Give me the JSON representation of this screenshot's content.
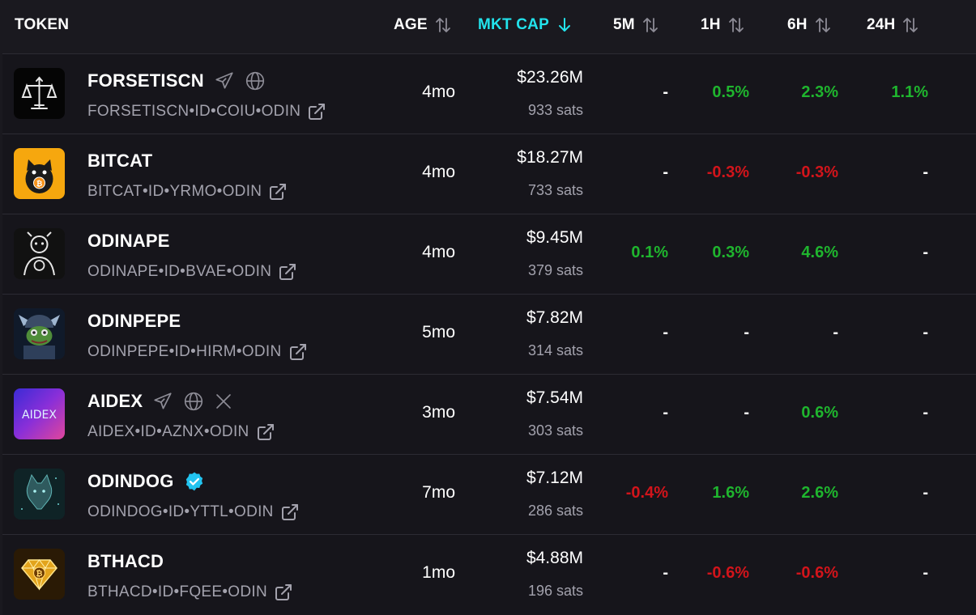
{
  "columns": {
    "token": "TOKEN",
    "age": "AGE",
    "mkt_cap": "MKT CAP",
    "m5": "5M",
    "h1": "1H",
    "h6": "6H",
    "h24": "24H"
  },
  "colors": {
    "active_header": "#22e3ec",
    "positive": "#1fb52e",
    "negative": "#d2141b",
    "muted_text": "#a3a2ad",
    "verified_badge": "#22c4f0"
  },
  "rows": [
    {
      "name": "FORSETISCN",
      "ticker": "FORSETISCN•ID•COIU•ODIN",
      "age": "4mo",
      "mcap": "$23.26M",
      "sats": "933 sats",
      "m5": "-",
      "h1": "0.5%",
      "h6": "2.3%",
      "h24": "1.1%",
      "icons": [
        "telegram-icon",
        "globe-icon"
      ]
    },
    {
      "name": "BITCAT",
      "ticker": "BITCAT•ID•YRMO•ODIN",
      "age": "4mo",
      "mcap": "$18.27M",
      "sats": "733 sats",
      "m5": "-",
      "h1": "-0.3%",
      "h6": "-0.3%",
      "h24": "-",
      "icons": []
    },
    {
      "name": "ODINAPE",
      "ticker": "ODINAPE•ID•BVAE•ODIN",
      "age": "4mo",
      "mcap": "$9.45M",
      "sats": "379 sats",
      "m5": "0.1%",
      "h1": "0.3%",
      "h6": "4.6%",
      "h24": "-",
      "icons": []
    },
    {
      "name": "ODINPEPE",
      "ticker": "ODINPEPE•ID•HIRM•ODIN",
      "age": "5mo",
      "mcap": "$7.82M",
      "sats": "314 sats",
      "m5": "-",
      "h1": "-",
      "h6": "-",
      "h24": "-",
      "icons": []
    },
    {
      "name": "AIDEX",
      "ticker": "AIDEX•ID•AZNX•ODIN",
      "age": "3mo",
      "mcap": "$7.54M",
      "sats": "303 sats",
      "m5": "-",
      "h1": "-",
      "h6": "0.6%",
      "h24": "-",
      "icons": [
        "telegram-icon",
        "globe-icon",
        "x-icon"
      ],
      "logo_text": "AIDEX"
    },
    {
      "name": "ODINDOG",
      "ticker": "ODINDOG•ID•YTTL•ODIN",
      "age": "7mo",
      "mcap": "$7.12M",
      "sats": "286 sats",
      "m5": "-0.4%",
      "h1": "1.6%",
      "h6": "2.6%",
      "h24": "-",
      "icons": [
        "verified-badge-icon"
      ]
    },
    {
      "name": "BTHACD",
      "ticker": "BTHACD•ID•FQEE•ODIN",
      "age": "1mo",
      "mcap": "$4.88M",
      "sats": "196 sats",
      "m5": "-",
      "h1": "-0.6%",
      "h6": "-0.6%",
      "h24": "-",
      "icons": []
    }
  ]
}
